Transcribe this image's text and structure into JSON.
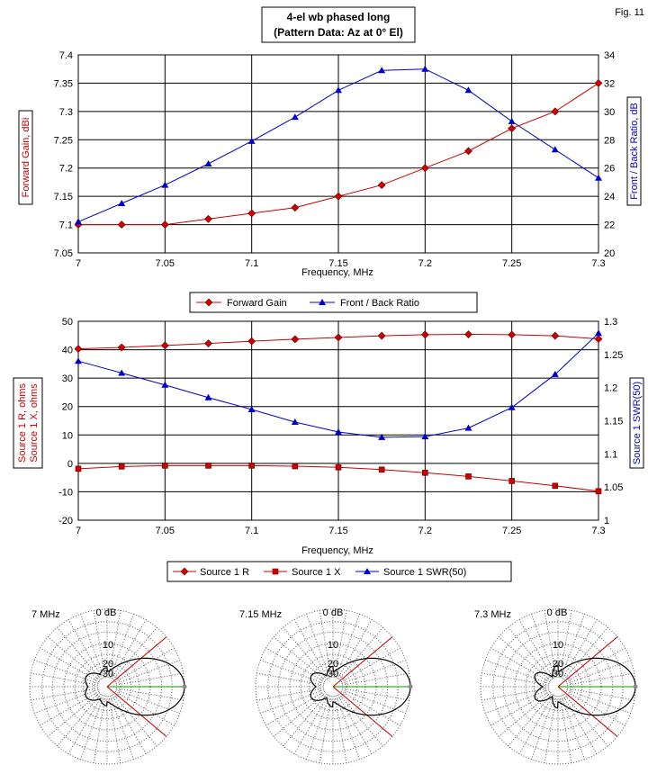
{
  "fig_label": "Fig. 11",
  "chart_data": [
    {
      "type": "line",
      "title_line1": "4-el wb phased long",
      "title_line2": "(Pattern Data: Az at 0° El)",
      "xlabel": "Frequency, MHz",
      "ylabel_left": "Forward Gain,  dBi",
      "ylabel_right": "Front / Back Ratio,  dB",
      "xlim": [
        7,
        7.3
      ],
      "ylim_left": [
        7.05,
        7.4
      ],
      "ylim_right": [
        20,
        34
      ],
      "x_ticks": [
        "7",
        "7.05",
        "7.1",
        "7.15",
        "7.2",
        "7.25",
        "7.3"
      ],
      "y_left_ticks": [
        "7.05",
        "7.1",
        "7.15",
        "7.2",
        "7.25",
        "7.3",
        "7.35",
        "7.4"
      ],
      "y_right_ticks": [
        "20",
        "22",
        "24",
        "26",
        "28",
        "30",
        "32",
        "34"
      ],
      "grid": true,
      "legend_position": "bottom",
      "x": [
        7.0,
        7.025,
        7.05,
        7.075,
        7.1,
        7.125,
        7.15,
        7.175,
        7.2,
        7.225,
        7.25,
        7.275,
        7.3
      ],
      "series": [
        {
          "name": "Forward Gain",
          "axis": "left",
          "color": "#cc0000",
          "marker": "diamond",
          "values": [
            7.1,
            7.1,
            7.1,
            7.11,
            7.12,
            7.13,
            7.15,
            7.17,
            7.2,
            7.23,
            7.27,
            7.3,
            7.35
          ]
        },
        {
          "name": "Front / Back Ratio",
          "axis": "right",
          "color": "#0000cc",
          "marker": "triangle",
          "values": [
            22.2,
            23.5,
            24.8,
            26.3,
            27.9,
            29.6,
            31.5,
            32.9,
            33.0,
            31.5,
            29.3,
            27.3,
            25.3
          ]
        }
      ]
    },
    {
      "type": "line",
      "xlabel": "Frequency, MHz",
      "ylabel_left_line1": "Source 1 R,  ohms",
      "ylabel_left_line2": "Source 1 X,  ohms",
      "ylabel_right": "Source 1 SWR(50)",
      "xlim": [
        7,
        7.3
      ],
      "ylim_left": [
        -20,
        50
      ],
      "ylim_right": [
        1,
        1.3
      ],
      "x_ticks": [
        "7",
        "7.05",
        "7.1",
        "7.15",
        "7.2",
        "7.25",
        "7.3"
      ],
      "y_left_ticks": [
        "-20",
        "-10",
        "0",
        "10",
        "20",
        "30",
        "40",
        "50"
      ],
      "y_right_ticks": [
        "1",
        "1.05",
        "1.1",
        "1.15",
        "1.2",
        "1.25",
        "1.3"
      ],
      "grid": true,
      "legend_position": "bottom",
      "x": [
        7.0,
        7.025,
        7.05,
        7.075,
        7.1,
        7.125,
        7.15,
        7.175,
        7.2,
        7.225,
        7.25,
        7.275,
        7.3
      ],
      "series": [
        {
          "name": "Source 1 R",
          "axis": "left",
          "color": "#cc0000",
          "marker": "diamond",
          "values": [
            40.3,
            40.8,
            41.5,
            42.2,
            43.0,
            43.7,
            44.3,
            44.9,
            45.3,
            45.4,
            45.3,
            44.9,
            43.8
          ]
        },
        {
          "name": "Source 1 X",
          "axis": "left",
          "color": "#cc0000",
          "marker": "square",
          "values": [
            -1.9,
            -1.1,
            -0.8,
            -0.8,
            -0.8,
            -1.0,
            -1.4,
            -2.2,
            -3.3,
            -4.6,
            -6.2,
            -7.9,
            -9.8
          ]
        },
        {
          "name": "Source 1 SWR(50)",
          "axis": "right",
          "color": "#0000cc",
          "marker": "triangle",
          "values": [
            1.24,
            1.222,
            1.204,
            1.185,
            1.167,
            1.148,
            1.133,
            1.125,
            1.126,
            1.139,
            1.17,
            1.22,
            1.282
          ]
        }
      ]
    }
  ],
  "polar_plots": [
    {
      "freq_label": "7 MHz",
      "ring_0": "0 dB",
      "ring_10": "10",
      "ring_20": "20",
      "ring_30": "30"
    },
    {
      "freq_label": "7.15 MHz",
      "ring_0": "0 dB",
      "ring_10": "10",
      "ring_20": "20",
      "ring_30": "30"
    },
    {
      "freq_label": "7.3 MHz",
      "ring_0": "0 dB",
      "ring_10": "10",
      "ring_20": "20",
      "ring_30": "30"
    }
  ]
}
